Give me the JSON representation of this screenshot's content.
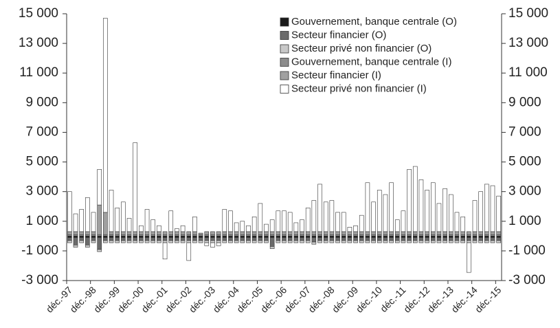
{
  "chart_data": {
    "type": "stacked-bar",
    "categories": [
      "déc.-97",
      null,
      null,
      null,
      "déc.-98",
      null,
      null,
      null,
      "déc.-99",
      null,
      null,
      null,
      "déc.-00",
      null,
      null,
      null,
      "déc.-01",
      null,
      null,
      null,
      "déc.-02",
      null,
      null,
      null,
      "déc.-03",
      null,
      null,
      null,
      "déc.-04",
      null,
      null,
      null,
      "déc.-05",
      null,
      null,
      null,
      "déc.-06",
      null,
      null,
      null,
      "déc.-07",
      null,
      null,
      null,
      "déc.-08",
      null,
      null,
      null,
      "déc.-09",
      null,
      null,
      null,
      "déc.-10",
      null,
      null,
      null,
      "déc.-11",
      null,
      null,
      null,
      "déc.-12",
      null,
      null,
      null,
      "déc.-13",
      null,
      null,
      null,
      "déc.-14",
      null,
      null,
      null,
      "déc.-15"
    ],
    "series": [
      {
        "name": "Gouvernement, banque centrale (O)",
        "color": "#1a1a1a",
        "values": [
          -100,
          -100,
          -100,
          -100,
          -100,
          -100,
          -100,
          -100,
          -100,
          -100,
          -100,
          -100,
          -100,
          -100,
          -100,
          -100,
          -100,
          -100,
          -100,
          -100,
          -100,
          -100,
          -100,
          -100,
          -100,
          -100,
          -100,
          -100,
          -100,
          -100,
          -100,
          -100,
          -100,
          -100,
          -100,
          -100,
          -100,
          -100,
          -100,
          -100,
          -100,
          -100,
          -100,
          -100,
          -100,
          -100,
          -100,
          -100,
          -100,
          -100,
          -100,
          -100,
          -100,
          -100,
          -100,
          -100,
          -100,
          -100,
          -100,
          -100,
          -100,
          -100,
          -100,
          -100,
          -100,
          -100,
          -100,
          -100,
          -100,
          -100,
          -100,
          -100,
          -100
        ]
      },
      {
        "name": "Secteur financier (O)",
        "color": "#6b6b6b",
        "values": [
          -200,
          -500,
          -200,
          -500,
          -200,
          -800,
          -200,
          -200,
          -200,
          -200,
          -200,
          -200,
          -200,
          -200,
          -200,
          -200,
          -200,
          -200,
          -200,
          -200,
          -200,
          -200,
          -200,
          -200,
          -200,
          -200,
          -200,
          -200,
          -200,
          -200,
          -200,
          -200,
          -200,
          -200,
          -600,
          -200,
          -200,
          -200,
          -200,
          -200,
          -200,
          -300,
          -200,
          -200,
          -200,
          -200,
          -200,
          -200,
          -200,
          -200,
          -200,
          -200,
          -200,
          -200,
          -200,
          -200,
          -200,
          -200,
          -200,
          -200,
          -200,
          -200,
          -200,
          -200,
          -200,
          -200,
          -200,
          -200,
          -200,
          -200,
          -200,
          -200,
          -200
        ]
      },
      {
        "name": "Secteur privé non financier (O)",
        "color": "#c8c8c8",
        "values": [
          -150,
          -150,
          -150,
          -150,
          -150,
          -150,
          -150,
          -150,
          -150,
          -150,
          -150,
          -150,
          -150,
          -150,
          -150,
          -150,
          -150,
          -150,
          -150,
          -150,
          -150,
          -150,
          -150,
          -150,
          -150,
          -150,
          -150,
          -150,
          -150,
          -150,
          -150,
          -150,
          -150,
          -150,
          -150,
          -150,
          -150,
          -150,
          -150,
          -150,
          -150,
          -150,
          -150,
          -150,
          -150,
          -150,
          -150,
          -150,
          -150,
          -150,
          -150,
          -150,
          -150,
          -150,
          -150,
          -150,
          -150,
          -150,
          -150,
          -150,
          -150,
          -150,
          -150,
          -150,
          -150,
          -150,
          -150,
          -150,
          -150,
          -150,
          -150,
          -150,
          -150
        ]
      },
      {
        "name": "Gouvernement, banque centrale (I)",
        "color": "#8c8c8c",
        "values": [
          100,
          100,
          100,
          100,
          100,
          100,
          100,
          100,
          100,
          100,
          100,
          100,
          100,
          100,
          100,
          100,
          100,
          100,
          100,
          100,
          100,
          100,
          100,
          100,
          100,
          100,
          100,
          100,
          100,
          100,
          100,
          100,
          100,
          100,
          100,
          100,
          100,
          100,
          100,
          100,
          100,
          100,
          100,
          100,
          100,
          100,
          100,
          100,
          100,
          100,
          100,
          100,
          100,
          100,
          100,
          100,
          100,
          100,
          100,
          100,
          100,
          100,
          100,
          100,
          100,
          100,
          100,
          100,
          100,
          100,
          100,
          100,
          100
        ]
      },
      {
        "name": "Secteur financier (I)",
        "color": "#a0a0a0",
        "values": [
          200,
          200,
          200,
          200,
          200,
          2000,
          1500,
          200,
          200,
          200,
          200,
          200,
          200,
          200,
          200,
          200,
          200,
          200,
          200,
          200,
          200,
          200,
          100,
          200,
          200,
          200,
          200,
          200,
          200,
          200,
          200,
          200,
          200,
          200,
          200,
          200,
          200,
          200,
          200,
          200,
          200,
          200,
          200,
          200,
          200,
          200,
          200,
          200,
          200,
          200,
          200,
          200,
          200,
          200,
          200,
          200,
          200,
          200,
          200,
          200,
          200,
          200,
          200,
          200,
          200,
          200,
          200,
          200,
          200,
          200,
          200,
          200,
          200
        ]
      },
      {
        "name": "Secteur privé non financier (I)",
        "color": "#ffffff",
        "values": [
          2700,
          1200,
          1500,
          2300,
          1300,
          2400,
          13100,
          2800,
          1600,
          2000,
          900,
          6000,
          400,
          1500,
          800,
          400,
          -1100,
          1400,
          200,
          400,
          -1200,
          1000,
          0,
          -200,
          -300,
          -200,
          1500,
          1400,
          600,
          700,
          400,
          1000,
          1900,
          500,
          800,
          1400,
          1400,
          1300,
          600,
          800,
          1600,
          2100,
          3200,
          2000,
          2100,
          1300,
          1300,
          300,
          400,
          1100,
          3300,
          2000,
          2800,
          2500,
          3300,
          800,
          1400,
          4200,
          4400,
          3500,
          2800,
          3300,
          1900,
          2900,
          2500,
          1300,
          1000,
          -2000,
          2100,
          2700,
          3200,
          3100,
          2400
        ]
      }
    ],
    "ylim": [
      -3000,
      15000
    ],
    "yticks": [
      {
        "value": -3000,
        "label": "-3 000"
      },
      {
        "value": -1000,
        "label": "-1 000"
      },
      {
        "value": 1000,
        "label": "1 000"
      },
      {
        "value": 3000,
        "label": "3 000"
      },
      {
        "value": 5000,
        "label": "5 000"
      },
      {
        "value": 7000,
        "label": "7 000"
      },
      {
        "value": 9000,
        "label": "9 000"
      },
      {
        "value": 11000,
        "label": "11 000"
      },
      {
        "value": 13000,
        "label": "13 000"
      },
      {
        "value": 15000,
        "label": "15 000"
      }
    ],
    "y2lim": [
      -3000,
      15000
    ],
    "y2ticks": [
      {
        "value": -3000,
        "label": "-3 000"
      },
      {
        "value": -1000,
        "label": "-1 000"
      },
      {
        "value": 1000,
        "label": "1 000"
      },
      {
        "value": 3000,
        "label": "3 000"
      },
      {
        "value": 5000,
        "label": "5 000"
      },
      {
        "value": 7000,
        "label": "7 000"
      },
      {
        "value": 9000,
        "label": "9 000"
      },
      {
        "value": 11000,
        "label": "11 000"
      },
      {
        "value": 13000,
        "label": "13 000"
      },
      {
        "value": 15000,
        "label": "15 000"
      }
    ],
    "legend": "top-right"
  }
}
